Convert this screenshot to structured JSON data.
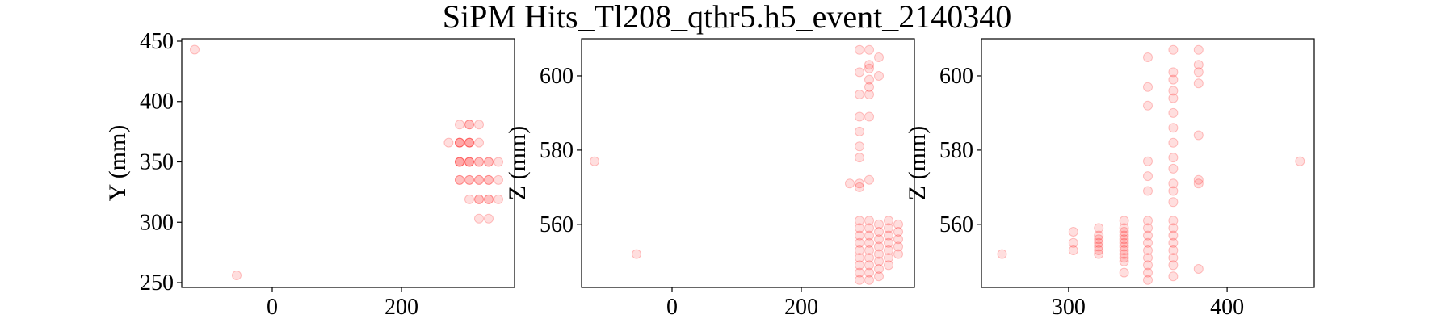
{
  "figure": {
    "title": "SiPM Hits_Tl208_qthr5.h5_event_2140340",
    "marker_color": "#ff0000"
  },
  "chart_data": [
    {
      "type": "scatter",
      "title": "",
      "xlabel": "",
      "ylabel": "Y (mm)",
      "xlim": [
        -140,
        375
      ],
      "ylim": [
        246,
        452
      ],
      "xticks": [
        0,
        200
      ],
      "yticks": [
        250,
        300,
        350,
        400,
        450
      ],
      "series": [
        {
          "points": [
            [
              -120,
              443
            ],
            [
              -55,
              256
            ],
            [
              290,
              381
            ],
            [
              305,
              381
            ],
            [
              305,
              381
            ],
            [
              320,
              381
            ],
            [
              273,
              366
            ],
            [
              290,
              366
            ],
            [
              290,
              366
            ],
            [
              290,
              366
            ],
            [
              305,
              366
            ],
            [
              305,
              366
            ],
            [
              305,
              366
            ],
            [
              320,
              366
            ],
            [
              290,
              350
            ],
            [
              290,
              350
            ],
            [
              290,
              350
            ],
            [
              305,
              350
            ],
            [
              305,
              350
            ],
            [
              305,
              350
            ],
            [
              320,
              350
            ],
            [
              320,
              350
            ],
            [
              335,
              350
            ],
            [
              335,
              350
            ],
            [
              350,
              350
            ],
            [
              290,
              335
            ],
            [
              290,
              335
            ],
            [
              305,
              335
            ],
            [
              305,
              335
            ],
            [
              320,
              335
            ],
            [
              320,
              335
            ],
            [
              335,
              335
            ],
            [
              335,
              335
            ],
            [
              350,
              335
            ],
            [
              305,
              319
            ],
            [
              320,
              319
            ],
            [
              320,
              319
            ],
            [
              335,
              319
            ],
            [
              335,
              319
            ],
            [
              350,
              319
            ],
            [
              320,
              303
            ],
            [
              335,
              303
            ]
          ]
        }
      ]
    },
    {
      "type": "scatter",
      "title": "",
      "xlabel": "",
      "ylabel": "Z (mm)",
      "xlim": [
        -140,
        375
      ],
      "ylim": [
        543,
        610
      ],
      "xticks": [
        0,
        200
      ],
      "yticks": [
        560,
        580,
        600
      ],
      "series": [
        {
          "points": [
            [
              -120,
              577
            ],
            [
              -55,
              552
            ],
            [
              275,
              571
            ],
            [
              290,
              607
            ],
            [
              290,
              601
            ],
            [
              290,
              595
            ],
            [
              290,
              589
            ],
            [
              290,
              585
            ],
            [
              290,
              581
            ],
            [
              290,
              578
            ],
            [
              290,
              571
            ],
            [
              290,
              570
            ],
            [
              290,
              561
            ],
            [
              290,
              559
            ],
            [
              290,
              557
            ],
            [
              290,
              555
            ],
            [
              290,
              553
            ],
            [
              290,
              551
            ],
            [
              290,
              549
            ],
            [
              290,
              547
            ],
            [
              290,
              545
            ],
            [
              305,
              607
            ],
            [
              305,
              603
            ],
            [
              305,
              602
            ],
            [
              305,
              599
            ],
            [
              305,
              597
            ],
            [
              305,
              595
            ],
            [
              305,
              589
            ],
            [
              305,
              572
            ],
            [
              305,
              561
            ],
            [
              305,
              559
            ],
            [
              305,
              557
            ],
            [
              305,
              555
            ],
            [
              305,
              553
            ],
            [
              305,
              551
            ],
            [
              305,
              549
            ],
            [
              305,
              547
            ],
            [
              305,
              545
            ],
            [
              320,
              605
            ],
            [
              320,
              600
            ],
            [
              320,
              560
            ],
            [
              320,
              558
            ],
            [
              320,
              556
            ],
            [
              320,
              554
            ],
            [
              320,
              552
            ],
            [
              320,
              550
            ],
            [
              320,
              548
            ],
            [
              320,
              546
            ],
            [
              335,
              561
            ],
            [
              335,
              559
            ],
            [
              335,
              557
            ],
            [
              335,
              555
            ],
            [
              335,
              553
            ],
            [
              335,
              551
            ],
            [
              335,
              549
            ],
            [
              350,
              560
            ],
            [
              350,
              558
            ],
            [
              350,
              556
            ],
            [
              350,
              554
            ],
            [
              350,
              552
            ]
          ]
        }
      ]
    },
    {
      "type": "scatter",
      "title": "",
      "xlabel": "",
      "ylabel": "Z (mm)",
      "xlim": [
        245,
        455
      ],
      "ylim": [
        543,
        610
      ],
      "xticks": [
        300,
        400
      ],
      "yticks": [
        560,
        580,
        600
      ],
      "series": [
        {
          "points": [
            [
              258,
              552
            ],
            [
              446,
              577
            ],
            [
              303,
              558
            ],
            [
              303,
              555
            ],
            [
              303,
              553
            ],
            [
              319,
              559
            ],
            [
              319,
              557
            ],
            [
              319,
              556
            ],
            [
              319,
              555
            ],
            [
              319,
              554
            ],
            [
              319,
              553
            ],
            [
              319,
              552
            ],
            [
              335,
              561
            ],
            [
              335,
              559
            ],
            [
              335,
              558
            ],
            [
              335,
              557
            ],
            [
              335,
              556
            ],
            [
              335,
              555
            ],
            [
              335,
              554
            ],
            [
              335,
              553
            ],
            [
              335,
              552
            ],
            [
              335,
              551
            ],
            [
              335,
              550
            ],
            [
              335,
              547
            ],
            [
              350,
              605
            ],
            [
              350,
              597
            ],
            [
              350,
              592
            ],
            [
              350,
              577
            ],
            [
              350,
              573
            ],
            [
              350,
              569
            ],
            [
              350,
              561
            ],
            [
              350,
              559
            ],
            [
              350,
              557
            ],
            [
              350,
              555
            ],
            [
              350,
              553
            ],
            [
              350,
              551
            ],
            [
              350,
              549
            ],
            [
              350,
              547
            ],
            [
              350,
              545
            ],
            [
              366,
              607
            ],
            [
              366,
              601
            ],
            [
              366,
              599
            ],
            [
              366,
              596
            ],
            [
              366,
              594
            ],
            [
              366,
              590
            ],
            [
              366,
              586
            ],
            [
              366,
              582
            ],
            [
              366,
              578
            ],
            [
              366,
              575
            ],
            [
              366,
              571
            ],
            [
              366,
              569
            ],
            [
              366,
              566
            ],
            [
              366,
              561
            ],
            [
              366,
              559
            ],
            [
              366,
              557
            ],
            [
              366,
              555
            ],
            [
              366,
              553
            ],
            [
              366,
              551
            ],
            [
              366,
              549
            ],
            [
              366,
              546
            ],
            [
              382,
              607
            ],
            [
              382,
              603
            ],
            [
              382,
              601
            ],
            [
              382,
              598
            ],
            [
              382,
              584
            ],
            [
              382,
              572
            ],
            [
              382,
              571
            ],
            [
              382,
              548
            ]
          ]
        }
      ]
    }
  ]
}
